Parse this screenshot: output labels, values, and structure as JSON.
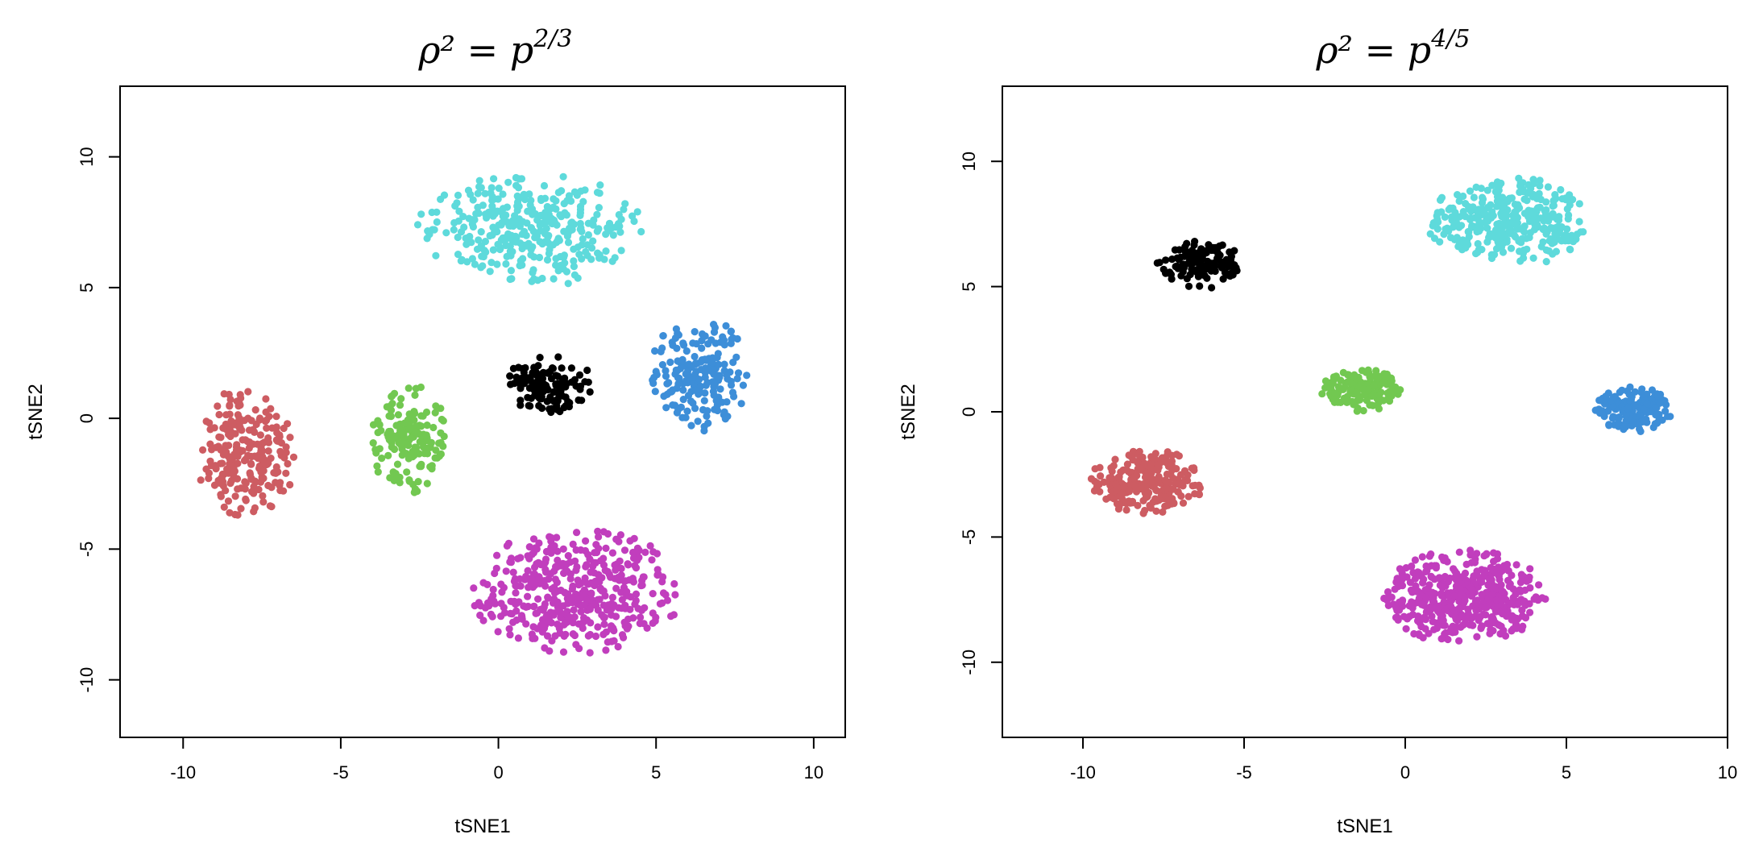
{
  "chart_data": [
    {
      "type": "scatter",
      "title": {
        "base": "ρ² = p",
        "exponent": "2/3"
      },
      "xlabel": "tSNE1",
      "ylabel": "tSNE2",
      "xlim": [
        -12,
        11
      ],
      "ylim": [
        -12.2,
        12.7
      ],
      "xticks": [
        -10,
        -5,
        0,
        5,
        10
      ],
      "yticks": [
        -10,
        -5,
        0,
        5,
        10
      ],
      "grid": false,
      "legend": "none",
      "series": [
        {
          "color": "#cd5c62",
          "center": [
            -8.0,
            -1.3
          ],
          "spread": [
            1.6,
            2.5
          ],
          "count": 230,
          "seed": 11
        },
        {
          "color": "#5edadb",
          "center": [
            1.0,
            7.2
          ],
          "spread": [
            3.6,
            2.2
          ],
          "count": 330,
          "seed": 12
        },
        {
          "color": "#72c851",
          "center": [
            -2.8,
            -0.8
          ],
          "spread": [
            1.3,
            2.1
          ],
          "count": 150,
          "seed": 13
        },
        {
          "color": "#000000",
          "center": [
            1.6,
            1.3
          ],
          "spread": [
            1.4,
            1.1
          ],
          "count": 120,
          "seed": 14
        },
        {
          "color": "#3d8ed8",
          "center": [
            6.4,
            1.7
          ],
          "spread": [
            1.6,
            2.2
          ],
          "count": 190,
          "seed": 15
        },
        {
          "color": "#c13ebd",
          "center": [
            2.5,
            -6.6
          ],
          "spread": [
            3.4,
            2.4
          ],
          "count": 440,
          "seed": 16
        }
      ]
    },
    {
      "type": "scatter",
      "title": {
        "base": "ρ² = p",
        "exponent": "4/5"
      },
      "xlabel": "tSNE1",
      "ylabel": "tSNE2",
      "xlim": [
        -12.5,
        10.0
      ],
      "ylim": [
        -13.0,
        13.0
      ],
      "xticks": [
        -10,
        -5,
        0,
        5,
        10
      ],
      "yticks": [
        -10,
        -5,
        0,
        5,
        10
      ],
      "grid": false,
      "legend": "none",
      "series": [
        {
          "color": "#cd5c62",
          "center": [
            -8.0,
            -2.8
          ],
          "spread": [
            1.8,
            1.3
          ],
          "count": 240,
          "seed": 21
        },
        {
          "color": "#5edadb",
          "center": [
            3.2,
            7.6
          ],
          "spread": [
            2.6,
            1.8
          ],
          "count": 340,
          "seed": 22
        },
        {
          "color": "#72c851",
          "center": [
            -1.4,
            0.9
          ],
          "spread": [
            1.3,
            0.9
          ],
          "count": 150,
          "seed": 23
        },
        {
          "color": "#000000",
          "center": [
            -6.4,
            5.9
          ],
          "spread": [
            1.3,
            1.0
          ],
          "count": 130,
          "seed": 24
        },
        {
          "color": "#3d8ed8",
          "center": [
            7.1,
            0.1
          ],
          "spread": [
            1.2,
            0.9
          ],
          "count": 180,
          "seed": 25
        },
        {
          "color": "#c13ebd",
          "center": [
            1.8,
            -7.4
          ],
          "spread": [
            2.6,
            1.9
          ],
          "count": 460,
          "seed": 26
        }
      ]
    }
  ]
}
